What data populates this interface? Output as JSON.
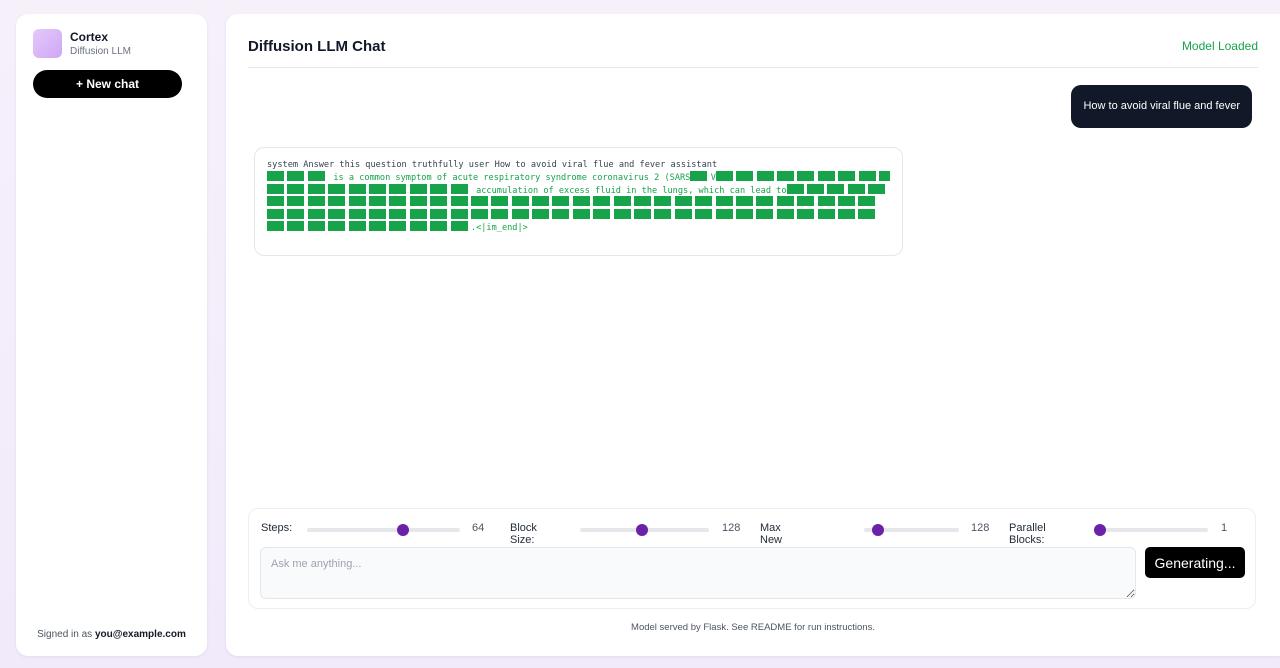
{
  "sidebar": {
    "brand_name": "Cortex",
    "brand_subtitle": "Diffusion LLM",
    "new_chat_label": "+ New chat",
    "signed_in_prefix": "Signed in as",
    "signed_in_user": "you@example.com"
  },
  "header": {
    "title": "Diffusion LLM Chat",
    "status": "Model Loaded",
    "status_color": "#16a34a"
  },
  "messages": {
    "user": "How to avoid viral flue and fever",
    "assistant": {
      "prompt_line": "system Answer this question truthfully user How to avoid viral flue and fever  assistant",
      "line1_text": " is a common symptom of acute respiratory syndrome coronavirus 2 (SARS",
      "line1_v": "V",
      "line2_text": " accumulation of excess fluid in the lungs, which can lead to",
      "end_token": ".<|im_end|>",
      "mask_token": "mask-block",
      "mask_color": "#16a34a"
    }
  },
  "controls": {
    "sliders": [
      {
        "label": "Steps:",
        "value": "64",
        "fraction": 0.63
      },
      {
        "label": "Block Size:",
        "value": "128",
        "fraction": 0.48
      },
      {
        "label": "Max New Tokens:",
        "value": "128",
        "fraction": 0.15
      },
      {
        "label": "Parallel Blocks:",
        "value": "1",
        "fraction": 0.0
      }
    ],
    "input_placeholder": "Ask me anything...",
    "input_value": "",
    "generate_label": "Generating...",
    "accent_color": "#6b21a8"
  },
  "footer": {
    "note": "Model served by Flask. See README for run instructions."
  }
}
